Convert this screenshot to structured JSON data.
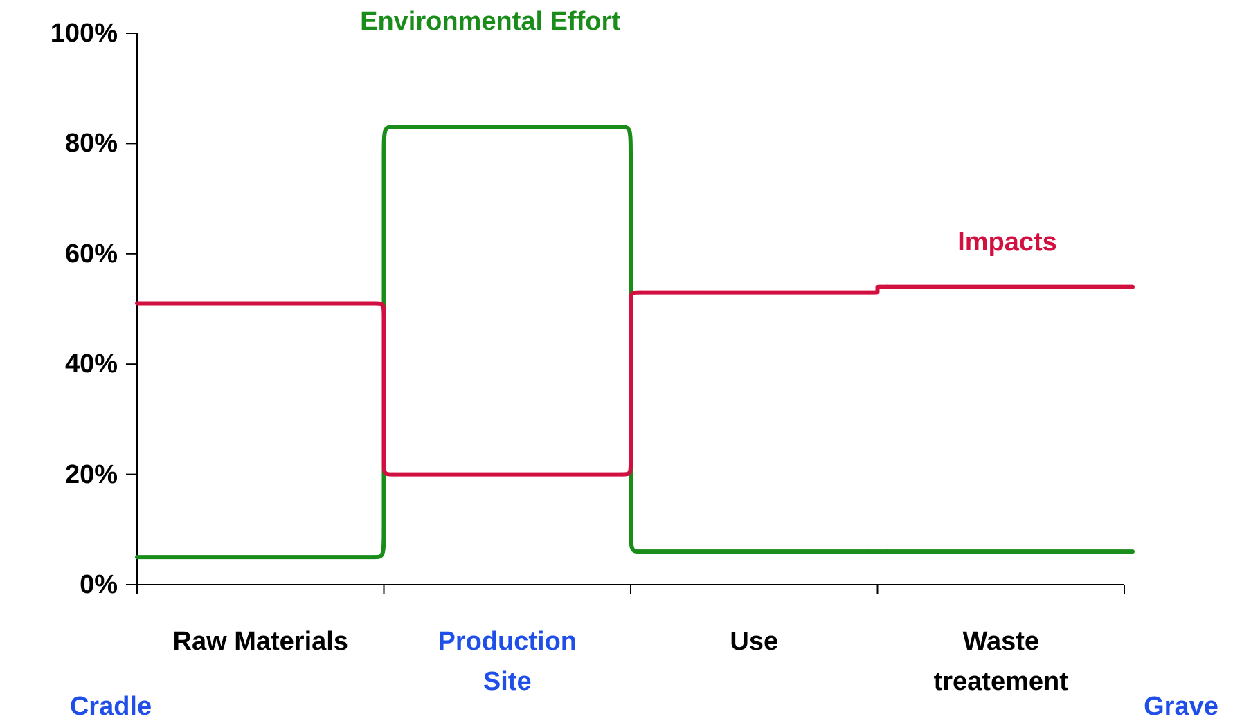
{
  "chart_data": {
    "type": "line",
    "categories": [
      "Raw Materials",
      "Production Site",
      "Use",
      "Waste treatement"
    ],
    "category_colors": [
      "#000000",
      "#1f4fe8",
      "#000000",
      "#000000"
    ],
    "series": [
      {
        "name": "Environmental Effort",
        "color": "#1a8c1a",
        "values": [
          5,
          83,
          6,
          6
        ]
      },
      {
        "name": "Impacts",
        "color": "#d21040",
        "values": [
          51,
          20,
          53,
          54
        ]
      }
    ],
    "ylim": [
      0,
      100
    ],
    "yticks": [
      {
        "value": 0,
        "label": "0%"
      },
      {
        "value": 20,
        "label": "20%"
      },
      {
        "value": 40,
        "label": "40%"
      },
      {
        "value": 60,
        "label": "60%"
      },
      {
        "value": 80,
        "label": "80%"
      },
      {
        "value": 100,
        "label": "100%"
      }
    ],
    "annotations": [
      {
        "text": "Cradle",
        "color": "#1f4fe8"
      },
      {
        "text": "Grave",
        "color": "#1f4fe8"
      }
    ]
  }
}
